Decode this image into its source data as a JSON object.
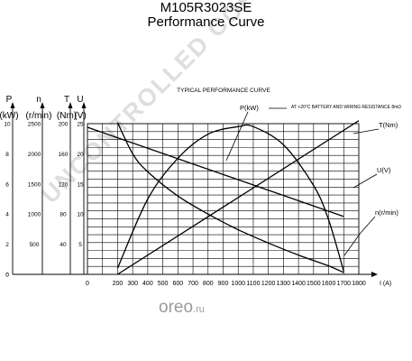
{
  "header": {
    "title": "M105R3023SE",
    "subtitle": "Performance Curve"
  },
  "watermark": "UNCONTROLLED COPY",
  "logo": {
    "name": "oreo",
    "suffix": ".ru"
  },
  "chart_data": {
    "type": "line",
    "title": "TYPICAL PERFORMANCE CURVE",
    "note": "AT +20°C BATTERY AND WIRING RESISTANCE 8mΩ",
    "xlabel": "I (A)",
    "x_ticks": [
      0,
      200,
      300,
      400,
      500,
      600,
      700,
      800,
      900,
      1000,
      1100,
      1200,
      1300,
      1400,
      1500,
      1600,
      1700,
      1800
    ],
    "xlim": [
      0,
      1800
    ],
    "grid": true,
    "axes": [
      {
        "key": "P",
        "label": "P",
        "unit": "(kW)",
        "ticks": [
          0,
          2,
          4,
          6,
          8,
          10
        ],
        "ylim": [
          0,
          10
        ]
      },
      {
        "key": "n",
        "label": "n",
        "unit": "(r/min)",
        "ticks": [
          500,
          1000,
          1500,
          2000,
          2500
        ],
        "ylim": [
          0,
          2500
        ]
      },
      {
        "key": "T",
        "label": "T",
        "unit": "(Nm)",
        "ticks": [
          40,
          80,
          120,
          160,
          200
        ],
        "ylim": [
          0,
          200
        ]
      },
      {
        "key": "U",
        "label": "U",
        "unit": "(V)",
        "ticks": [
          5,
          10,
          15,
          20,
          25
        ],
        "ylim": [
          0,
          25
        ]
      }
    ],
    "series": [
      {
        "name": "P(kW)",
        "axis": "P",
        "points": [
          [
            200,
            0.4
          ],
          [
            400,
            5.0
          ],
          [
            600,
            7.7
          ],
          [
            800,
            9.3
          ],
          [
            1000,
            9.8
          ],
          [
            1100,
            9.8
          ],
          [
            1300,
            8.6
          ],
          [
            1500,
            5.9
          ],
          [
            1600,
            3.6
          ],
          [
            1700,
            0.2
          ]
        ]
      },
      {
        "name": "T(Nm)",
        "axis": "T",
        "points": [
          [
            200,
            0
          ],
          [
            1800,
            204
          ]
        ]
      },
      {
        "name": "U(V)",
        "axis": "U",
        "points": [
          [
            0,
            24.4
          ],
          [
            1700,
            9.6
          ]
        ]
      },
      {
        "name": "n(r/min)",
        "axis": "n",
        "points": [
          [
            200,
            2520
          ],
          [
            300,
            2000
          ],
          [
            400,
            1700
          ],
          [
            600,
            1300
          ],
          [
            800,
            1000
          ],
          [
            1000,
            740
          ],
          [
            1200,
            520
          ],
          [
            1400,
            320
          ],
          [
            1600,
            140
          ],
          [
            1700,
            30
          ]
        ]
      }
    ]
  }
}
